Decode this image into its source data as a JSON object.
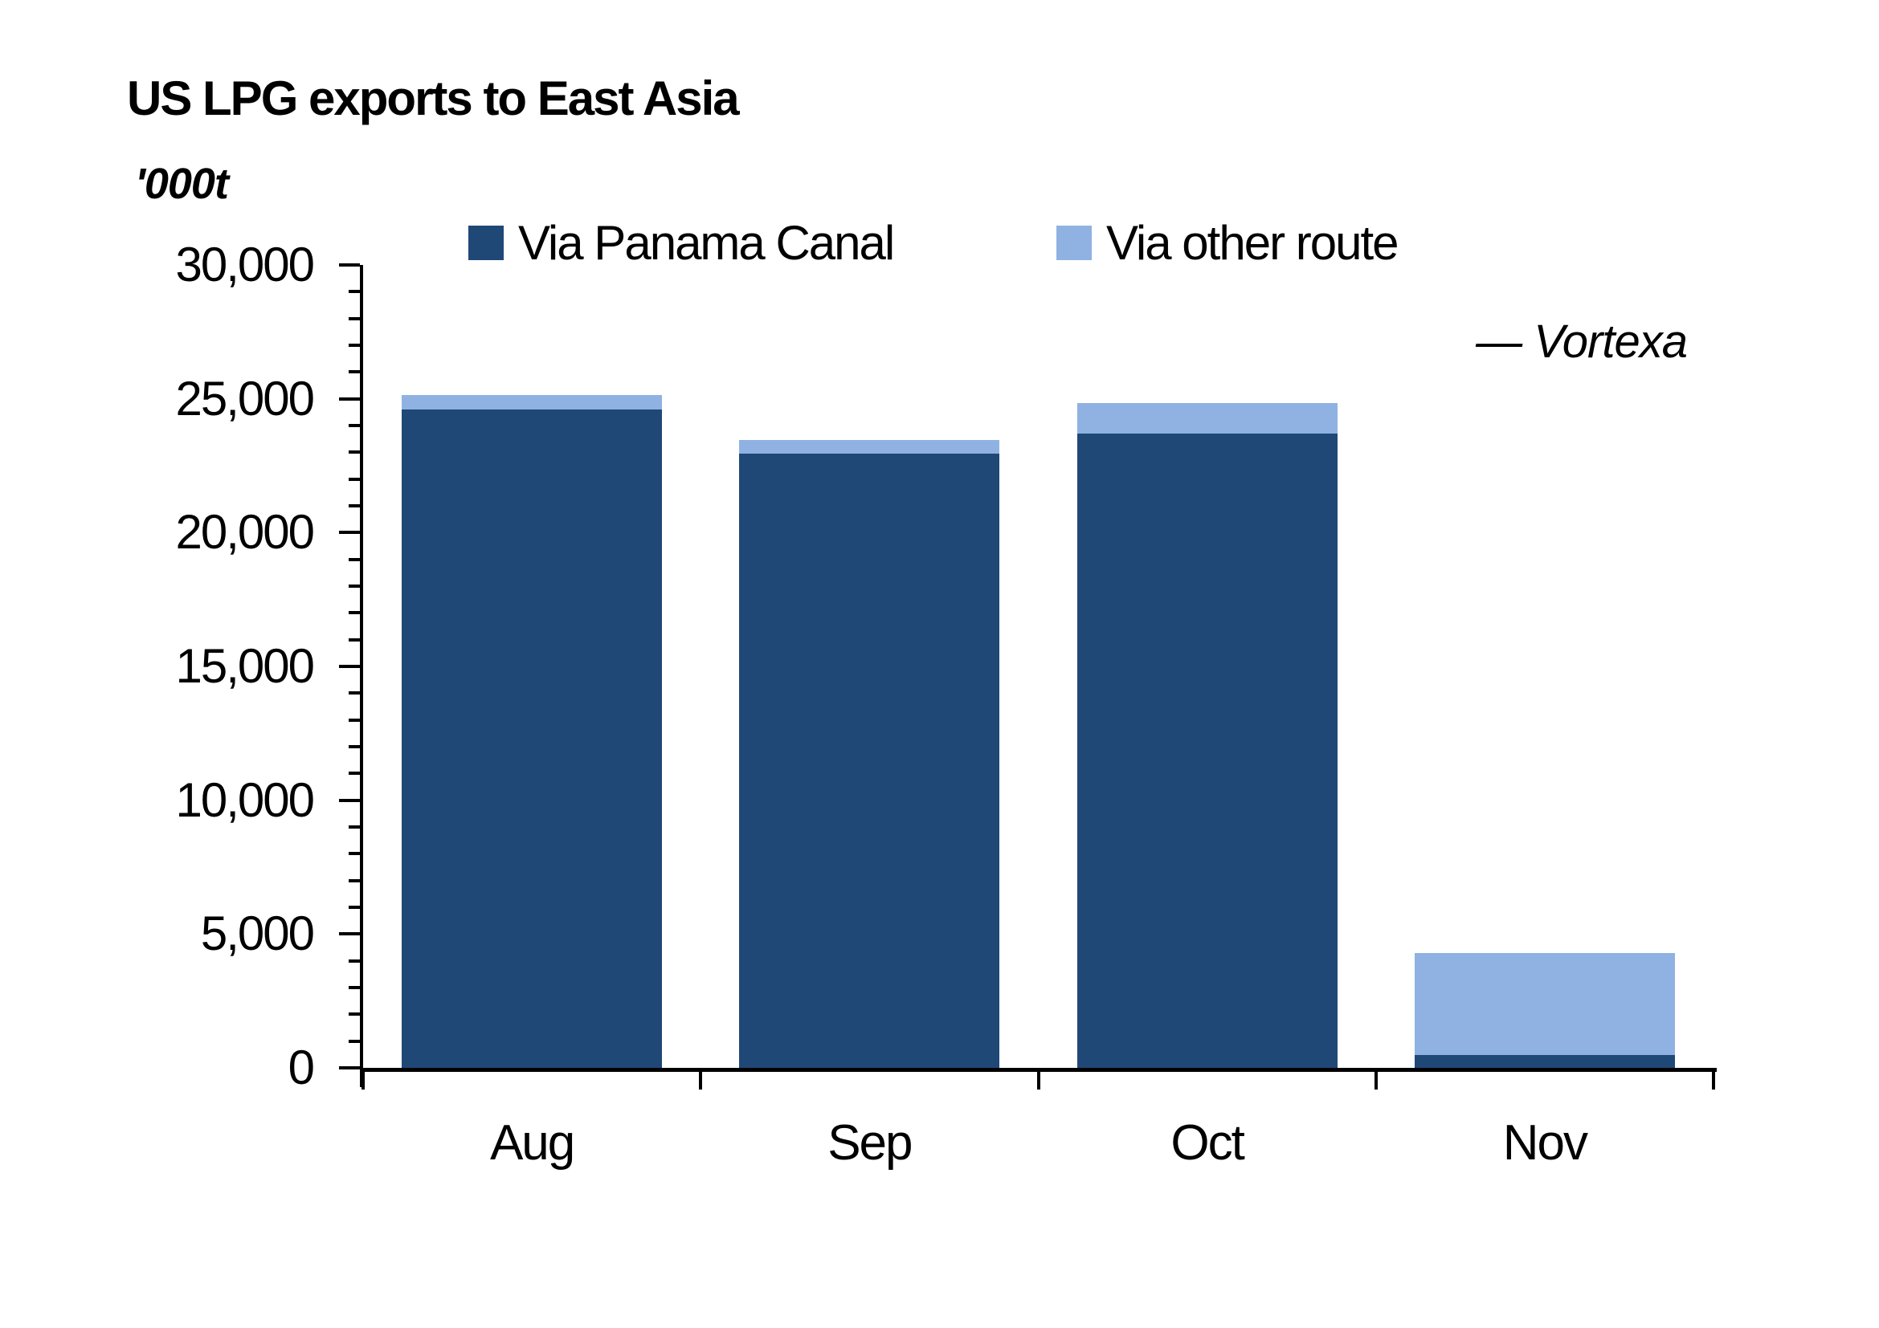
{
  "title": "US LPG exports to East Asia",
  "unit_label": "'000t",
  "attribution": "— Vortexa",
  "legend": [
    {
      "label": "Via Panama Canal",
      "color": "#1F4877"
    },
    {
      "label": "Via other route",
      "color": "#8FB2E2"
    }
  ],
  "chart_data": {
    "type": "bar",
    "stacked": true,
    "title": "US LPG exports to East Asia",
    "ylabel": "'000t",
    "categories": [
      "Aug",
      "Sep",
      "Oct",
      "Nov"
    ],
    "series": [
      {
        "name": "Via Panama Canal",
        "color": "#1F4877",
        "values": [
          24600,
          22950,
          23700,
          480
        ]
      },
      {
        "name": "Via other route",
        "color": "#8FB2E2",
        "values": [
          550,
          500,
          1150,
          3800
        ]
      }
    ],
    "totals": [
      25150,
      23450,
      24850,
      4280
    ],
    "ylim": [
      0,
      30000
    ],
    "ytick_step": 5000,
    "minor_tick_step": 1000,
    "ytick_labels": [
      "0",
      "5,000",
      "10,000",
      "15,000",
      "20,000",
      "25,000",
      "30,000"
    ],
    "grid": false,
    "legend_position": "top",
    "source": "Vortexa"
  }
}
